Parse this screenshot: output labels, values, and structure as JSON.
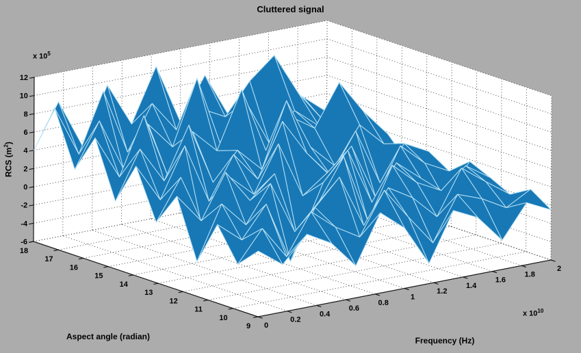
{
  "figure": {
    "title": "Cluttered signal",
    "colors": {
      "background": "#acacac",
      "wall": "#ffffff",
      "surface_fill": "#1878b6",
      "surface_edge": "#b8e2f4",
      "grid": "#303030",
      "axis_line": "#1a1a1a",
      "text": "#000000"
    }
  },
  "axes": {
    "x": {
      "label": "Frequency (Hz)",
      "multiplier_base": "x 10",
      "multiplier_exp": "10",
      "ticks": [
        "0",
        "0.2",
        "0.4",
        "0.6",
        "0.8",
        "1",
        "1.2",
        "1.4",
        "1.6",
        "1.8",
        "2"
      ]
    },
    "y": {
      "label": "Aspect angle (radian)",
      "ticks": [
        "9",
        "10",
        "11",
        "12",
        "13",
        "14",
        "15",
        "16",
        "17",
        "18"
      ]
    },
    "z": {
      "label_pre": "RCS (m",
      "label_sup": "2",
      "label_post": ")",
      "multiplier_base": "x 10",
      "multiplier_exp": "5",
      "ticks": [
        "-6",
        "-4",
        "-2",
        "0",
        "2",
        "4",
        "6",
        "8",
        "10",
        "12"
      ]
    }
  },
  "chart_data": {
    "type": "surface",
    "title": "Cluttered signal",
    "xlabel": "Frequency (Hz)",
    "ylabel": "Aspect angle (radian)",
    "zlabel": "RCS (m^2)",
    "xlim": [
      0,
      20000000000
    ],
    "ylim": [
      9,
      18
    ],
    "zlim": [
      -600000,
      1200000
    ],
    "x_scale": 10000000000,
    "z_scale": 100000,
    "view": {
      "azimuth": -37.5,
      "elevation": 30
    },
    "grid": true,
    "x_values": [
      0,
      0.167,
      0.333,
      0.5,
      0.667,
      0.833,
      1,
      1.167,
      1.333,
      1.5,
      1.667,
      1.833,
      2
    ],
    "y_values": [
      9,
      9.82,
      10.64,
      11.45,
      12.27,
      13.09,
      13.91,
      14.73,
      15.55,
      16.36,
      17.18,
      18
    ],
    "z_grid": [
      [
        1.2,
        -0.8,
        2.0,
        0.5,
        -2.5,
        2.8,
        0.6,
        -3.8,
        1.5,
        0.2,
        -2.8,
        0.8,
        -0.5
      ],
      [
        -1.0,
        2.4,
        -1.2,
        3.2,
        1.0,
        -0.6,
        4.0,
        0.5,
        -2.8,
        2.0,
        1.0,
        -0.5,
        1.0
      ],
      [
        2.6,
        0.4,
        3.8,
        -3.0,
        2.4,
        5.2,
        -0.6,
        3.0,
        1.4,
        -1.2,
        3.6,
        1.6,
        -0.3
      ],
      [
        -2.2,
        3.6,
        0.8,
        4.8,
        -1.0,
        1.8,
        6.2,
        -1.4,
        4.2,
        1.8,
        0.4,
        2.6,
        0.8
      ],
      [
        4.2,
        1.0,
        5.8,
        2.2,
        4.6,
        -3.5,
        2.6,
        5.6,
        -0.6,
        3.2,
        1.0,
        -1.8,
        1.8
      ],
      [
        0.6,
        5.0,
        -2.5,
        4.0,
        1.6,
        6.6,
        0.4,
        2.4,
        4.8,
        -1.4,
        3.8,
        1.4,
        0.0
      ],
      [
        6.0,
        1.8,
        7.2,
        0.6,
        5.2,
        2.0,
        7.8,
        3.8,
        0.8,
        5.2,
        -1.0,
        2.8,
        1.4
      ],
      [
        1.4,
        6.6,
        2.6,
        8.2,
        1.4,
        4.4,
        1.8,
        8.8,
        3.2,
        0.6,
        4.6,
        2.0,
        -0.6
      ],
      [
        7.6,
        2.8,
        9.0,
        1.8,
        6.2,
        3.6,
        9.8,
        2.6,
        5.8,
        4.0,
        8.5,
        4.8,
        1.8
      ],
      [
        3.4,
        8.2,
        2.4,
        6.8,
        3.8,
        10.8,
        2.8,
        7.2,
        2.0,
        5.2,
        3.0,
        0.8,
        2.8
      ],
      [
        9.4,
        3.8,
        10.2,
        3.0,
        7.8,
        4.4,
        6.2,
        4.8,
        8.2,
        10.5,
        5.8,
        2.4,
        1.0
      ],
      [
        4.0,
        8.8,
        3.4,
        9.6,
        4.8,
        10.6,
        4.0,
        8.6,
        3.6,
        6.2,
        2.6,
        4.2,
        2.0
      ]
    ]
  }
}
